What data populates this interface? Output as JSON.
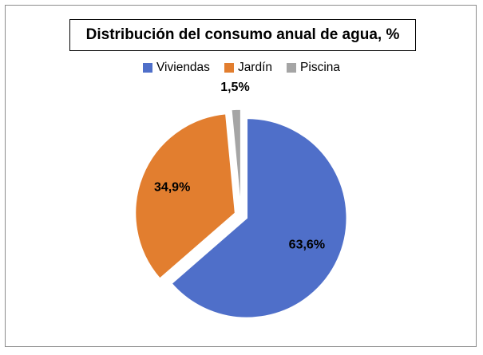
{
  "chart_data": {
    "type": "pie",
    "title": "Distribución del consumo anual de agua, %",
    "categories": [
      "Viviendas",
      "Jardín",
      "Piscina"
    ],
    "values": [
      63.6,
      34.9,
      1.5
    ],
    "data_labels": [
      "63,6%",
      "34,9%",
      "1,5%"
    ],
    "colors": [
      "#4F6FC9",
      "#E27E2F",
      "#A5A5A5"
    ],
    "exploded": true,
    "legend_position": "top"
  }
}
